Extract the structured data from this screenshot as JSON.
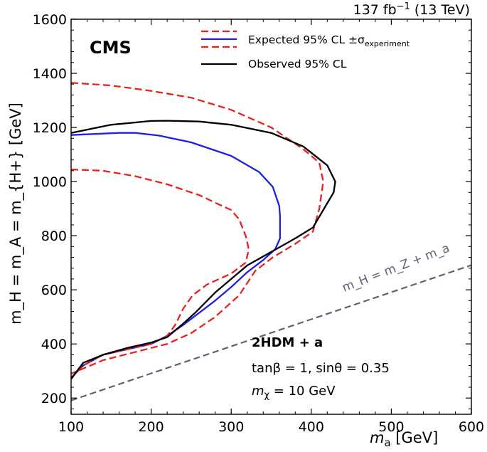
{
  "chart_data": {
    "type": "line",
    "title": "",
    "lumi_label": "137 fb",
    "lumi_exp": "−1",
    "lumi_energy": "(13 TeV)",
    "experiment": "CMS",
    "xlabel": {
      "symbol": "m",
      "sub": "a",
      "unit": "[GeV]"
    },
    "ylabel": {
      "text": "m_H = m_A = m_{H+} [GeV]"
    },
    "xlim": [
      100,
      600
    ],
    "ylim": [
      140,
      1600
    ],
    "xticks": [
      100,
      200,
      300,
      400,
      500,
      600
    ],
    "yticks": [
      200,
      400,
      600,
      800,
      1000,
      1200,
      1400,
      1600
    ],
    "legend": {
      "placement": "top-right",
      "expected": "Expected 95% CL ±σ",
      "expected_sub": "experiment",
      "observed": "Observed 95% CL"
    },
    "annotations": {
      "model": "2HDM + a",
      "params1": "tanβ = 1, sinθ = 0.35",
      "params2_sym": "m",
      "params2_sub": "χ",
      "params2_val": " = 10 GeV",
      "diag_label": "m_H = m_Z + m_a"
    },
    "colors": {
      "observed": "#000000",
      "expected": "#1f1fe6",
      "band": "#e8231f",
      "diagonal": "#5a6378"
    },
    "series": [
      {
        "name": "Expected 95% CL +1σ",
        "style": "dashed",
        "color": "#e8231f",
        "points": [
          [
            100,
            1365
          ],
          [
            150,
            1355
          ],
          [
            200,
            1335
          ],
          [
            250,
            1310
          ],
          [
            300,
            1265
          ],
          [
            350,
            1200
          ],
          [
            390,
            1120
          ],
          [
            410,
            1070
          ],
          [
            415,
            1000
          ],
          [
            410,
            900
          ],
          [
            402,
            815
          ],
          [
            380,
            770
          ],
          [
            352,
            720
          ],
          [
            330,
            670
          ],
          [
            310,
            580
          ],
          [
            280,
            500
          ],
          [
            250,
            440
          ],
          [
            220,
            400
          ],
          [
            180,
            370
          ],
          [
            140,
            340
          ],
          [
            100,
            290
          ]
        ]
      },
      {
        "name": "Expected 95% CL",
        "style": "solid",
        "color": "#1f1fe6",
        "points": [
          [
            100,
            1172
          ],
          [
            130,
            1176
          ],
          [
            160,
            1180
          ],
          [
            180,
            1180
          ],
          [
            210,
            1170
          ],
          [
            250,
            1145
          ],
          [
            300,
            1095
          ],
          [
            335,
            1035
          ],
          [
            352,
            980
          ],
          [
            360,
            910
          ],
          [
            361,
            870
          ],
          [
            361,
            790
          ],
          [
            355,
            750
          ],
          [
            340,
            710
          ],
          [
            320,
            665
          ],
          [
            300,
            610
          ],
          [
            280,
            560
          ],
          [
            260,
            515
          ],
          [
            240,
            470
          ],
          [
            220,
            430
          ],
          [
            200,
            400
          ],
          [
            170,
            380
          ],
          [
            140,
            360
          ],
          [
            115,
            320
          ],
          [
            100,
            275
          ]
        ]
      },
      {
        "name": "Expected 95% CL −1σ",
        "style": "dashed",
        "color": "#e8231f",
        "points": [
          [
            100,
            1045
          ],
          [
            140,
            1040
          ],
          [
            180,
            1020
          ],
          [
            220,
            990
          ],
          [
            260,
            950
          ],
          [
            285,
            915
          ],
          [
            300,
            895
          ],
          [
            310,
            860
          ],
          [
            318,
            800
          ],
          [
            322,
            750
          ],
          [
            318,
            700
          ],
          [
            300,
            660
          ],
          [
            270,
            620
          ],
          [
            252,
            580
          ],
          [
            240,
            530
          ],
          [
            230,
            470
          ],
          [
            220,
            430
          ],
          [
            200,
            400
          ],
          [
            170,
            380
          ],
          [
            140,
            360
          ],
          [
            115,
            320
          ],
          [
            100,
            275
          ]
        ]
      },
      {
        "name": "Observed 95% CL",
        "style": "solid",
        "color": "#000000",
        "points": [
          [
            100,
            1180
          ],
          [
            150,
            1210
          ],
          [
            200,
            1224
          ],
          [
            220,
            1225
          ],
          [
            260,
            1222
          ],
          [
            300,
            1210
          ],
          [
            350,
            1180
          ],
          [
            390,
            1130
          ],
          [
            420,
            1060
          ],
          [
            430,
            1000
          ],
          [
            428,
            960
          ],
          [
            420,
            920
          ],
          [
            402,
            830
          ],
          [
            380,
            790
          ],
          [
            350,
            740
          ],
          [
            320,
            690
          ],
          [
            300,
            640
          ],
          [
            280,
            590
          ],
          [
            255,
            515
          ],
          [
            240,
            475
          ],
          [
            220,
            425
          ],
          [
            200,
            405
          ],
          [
            170,
            385
          ],
          [
            140,
            360
          ],
          [
            115,
            330
          ],
          [
            100,
            270
          ]
        ]
      },
      {
        "name": "m_H = m_Z + m_a",
        "style": "dashed",
        "color": "#5a6378",
        "points": [
          [
            100,
            191
          ],
          [
            600,
            691
          ]
        ]
      }
    ]
  }
}
